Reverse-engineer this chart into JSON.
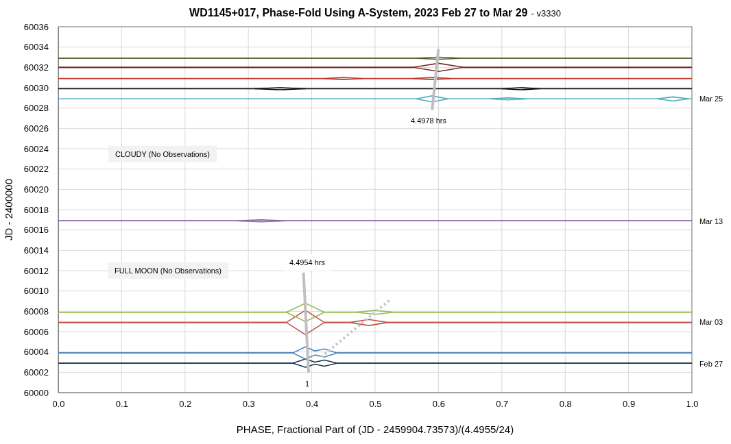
{
  "chart_data": {
    "type": "line",
    "title": "WD1145+017, Phase-Fold Using A-System, 2023 Feb 27 to Mar 29",
    "subtitle": "- v3330",
    "xlabel": "PHASE, Fractional Part of (JD - 2459904.73573)/(4.4955/24)",
    "ylabel": "JD - 2400000",
    "xlim": [
      0,
      1
    ],
    "xticks": [
      {
        "value": 0,
        "label": "0.0"
      },
      {
        "value": 0.1,
        "label": "0.1"
      },
      {
        "value": 0.2,
        "label": "0.2"
      },
      {
        "value": 0.3,
        "label": "0.3"
      },
      {
        "value": 0.4,
        "label": "0.4"
      },
      {
        "value": 0.5,
        "label": "0.5"
      },
      {
        "value": 0.6,
        "label": "0.6"
      },
      {
        "value": 0.7,
        "label": "0.7"
      },
      {
        "value": 0.8,
        "label": "0.8"
      },
      {
        "value": 0.9,
        "label": "0.9"
      },
      {
        "value": 1,
        "label": "1.0"
      }
    ],
    "ylim": [
      60000,
      60036
    ],
    "yticks": [
      60000,
      60002,
      60004,
      60006,
      60008,
      60010,
      60012,
      60014,
      60016,
      60018,
      60020,
      60022,
      60024,
      60026,
      60028,
      60030,
      60032,
      60034,
      60036
    ],
    "grid": true,
    "marker": "none",
    "line_style": "solid",
    "series": [
      {
        "color": "#1f3550",
        "x": [
          0,
          0.37,
          0.39,
          0.405,
          0.42,
          0.44,
          1
        ],
        "values": [
          60002.9,
          60002.9,
          60003.3,
          60003.0,
          60003.2,
          60002.9,
          60002.9
        ]
      },
      {
        "color": "#1f3550",
        "x": [
          0,
          0.37,
          0.39,
          0.405,
          0.42,
          0.44,
          1
        ],
        "values": [
          60002.9,
          60002.9,
          60002.5,
          60002.8,
          60002.6,
          60002.9,
          60002.9
        ]
      },
      {
        "color": "#4f81bd",
        "x": [
          0,
          0.37,
          0.39,
          0.405,
          0.42,
          0.44,
          1
        ],
        "values": [
          60003.9,
          60003.9,
          60004.5,
          60004.1,
          60004.3,
          60003.9,
          60003.9
        ]
      },
      {
        "color": "#4f81bd",
        "x": [
          0,
          0.37,
          0.39,
          0.405,
          0.42,
          0.44,
          1
        ],
        "values": [
          60003.9,
          60003.9,
          60003.3,
          60003.7,
          60003.5,
          60003.9,
          60003.9
        ]
      },
      {
        "color": "#c0504d",
        "x": [
          0,
          0.36,
          0.39,
          0.42,
          0.46,
          0.49,
          0.52,
          1
        ],
        "values": [
          60006.9,
          60006.9,
          60008.1,
          60006.9,
          60006.9,
          60007.2,
          60006.9,
          60006.9
        ]
      },
      {
        "color": "#c0504d",
        "x": [
          0,
          0.36,
          0.39,
          0.42,
          0.46,
          0.49,
          0.52,
          1
        ],
        "values": [
          60006.9,
          60006.9,
          60005.7,
          60006.9,
          60006.9,
          60006.6,
          60006.9,
          60006.9
        ]
      },
      {
        "color": "#9bbb59",
        "x": [
          0,
          0.36,
          0.39,
          0.42,
          0.47,
          0.5,
          0.53,
          1
        ],
        "values": [
          60007.9,
          60007.9,
          60008.8,
          60007.9,
          60007.9,
          60008.1,
          60007.9,
          60007.9
        ]
      },
      {
        "color": "#9bbb59",
        "x": [
          0,
          0.36,
          0.39,
          0.42,
          0.47,
          0.5,
          0.53,
          1
        ],
        "values": [
          60007.9,
          60007.9,
          60007.0,
          60007.9,
          60007.9,
          60007.7,
          60007.9,
          60007.9
        ]
      },
      {
        "color": "#8064a2",
        "x": [
          0,
          0.28,
          0.32,
          0.36,
          1
        ],
        "values": [
          60016.9,
          60016.9,
          60017.0,
          60016.9,
          60016.9
        ]
      },
      {
        "color": "#8064a2",
        "x": [
          0,
          0.28,
          0.32,
          0.36,
          1
        ],
        "values": [
          60016.9,
          60016.9,
          60016.8,
          60016.9,
          60016.9
        ]
      },
      {
        "color": "#4bacc6",
        "x": [
          0,
          0.565,
          0.59,
          0.615,
          0.68,
          0.71,
          0.74,
          0.945,
          0.97,
          0.995,
          1
        ],
        "values": [
          60028.9,
          60028.9,
          60029.2,
          60028.9,
          60028.9,
          60029.0,
          60028.9,
          60028.9,
          60029.1,
          60028.9,
          60028.9
        ]
      },
      {
        "color": "#4bacc6",
        "x": [
          0.565,
          0.59,
          0.615,
          0.65,
          0.68,
          0.71,
          0.74,
          0.85,
          0.945,
          0.97,
          0.995
        ],
        "values": [
          60028.9,
          60028.6,
          60028.9,
          null,
          60028.9,
          60028.8,
          60028.9,
          null,
          60028.9,
          60028.7,
          60028.9
        ]
      },
      {
        "color": "#000000",
        "x": [
          0,
          0.31,
          0.35,
          0.39,
          0.7,
          0.73,
          0.76,
          1
        ],
        "values": [
          60029.9,
          60029.9,
          60030.0,
          60029.9,
          60029.9,
          60030.0,
          60029.9,
          60029.9
        ]
      },
      {
        "color": "#000000",
        "x": [
          0.31,
          0.35,
          0.39,
          0.55,
          0.7,
          0.73,
          0.76
        ],
        "values": [
          60029.9,
          60029.8,
          60029.9,
          null,
          60029.9,
          60029.8,
          60029.9
        ]
      },
      {
        "color": "#c0392b",
        "x": [
          0,
          0.42,
          0.45,
          0.48,
          0.56,
          0.59,
          0.62,
          1
        ],
        "values": [
          60030.9,
          60030.9,
          60031.0,
          60030.9,
          60030.9,
          60031.0,
          60030.9,
          60030.9
        ]
      },
      {
        "color": "#c0392b",
        "x": [
          0.42,
          0.45,
          0.48,
          0.52,
          0.56,
          0.59,
          0.62
        ],
        "values": [
          60030.9,
          60030.8,
          60030.9,
          null,
          60030.9,
          60030.8,
          60030.9
        ]
      },
      {
        "color": "#772c2a",
        "x": [
          0,
          0.56,
          0.6,
          0.64,
          1
        ],
        "values": [
          60032.0,
          60032.0,
          60032.4,
          60032.0,
          60032.0
        ]
      },
      {
        "color": "#772c2a",
        "x": [
          0,
          0.56,
          0.6,
          0.64,
          1
        ],
        "values": [
          60032.0,
          60032.0,
          60031.6,
          60032.0,
          60032.0
        ]
      },
      {
        "color": "#4f6228",
        "x": [
          0,
          0.56,
          0.6,
          0.64,
          1
        ],
        "values": [
          60032.9,
          60032.9,
          60033.0,
          60032.9,
          60032.9
        ]
      },
      {
        "color": "#4f6228",
        "x": [
          0,
          0.56,
          0.6,
          0.64,
          1
        ],
        "values": [
          60032.9,
          60032.9,
          60032.8,
          60032.9,
          60032.9
        ]
      },
      {
        "color": "#c0c0c0",
        "x": [
          0.387,
          0.395
        ],
        "values": [
          60011.8,
          60002
        ]
      },
      {
        "color": "#c0c0c0",
        "x": [
          0.6,
          0.59
        ],
        "values": [
          60033.8,
          60027.8
        ]
      },
      {
        "color": "#c8c8c8",
        "line_style": "dotted",
        "x": [
          0.415,
          0.525
        ],
        "values": [
          60003.5,
          60009.2
        ]
      }
    ],
    "annotations": [
      "CLOUDY (No Observations)",
      "FULL MOON (No Observations)",
      "4.4954 hrs",
      "1",
      "4.4978 hrs",
      "Mar 25",
      "Mar 13",
      "Mar 03",
      "Feb 27"
    ]
  }
}
